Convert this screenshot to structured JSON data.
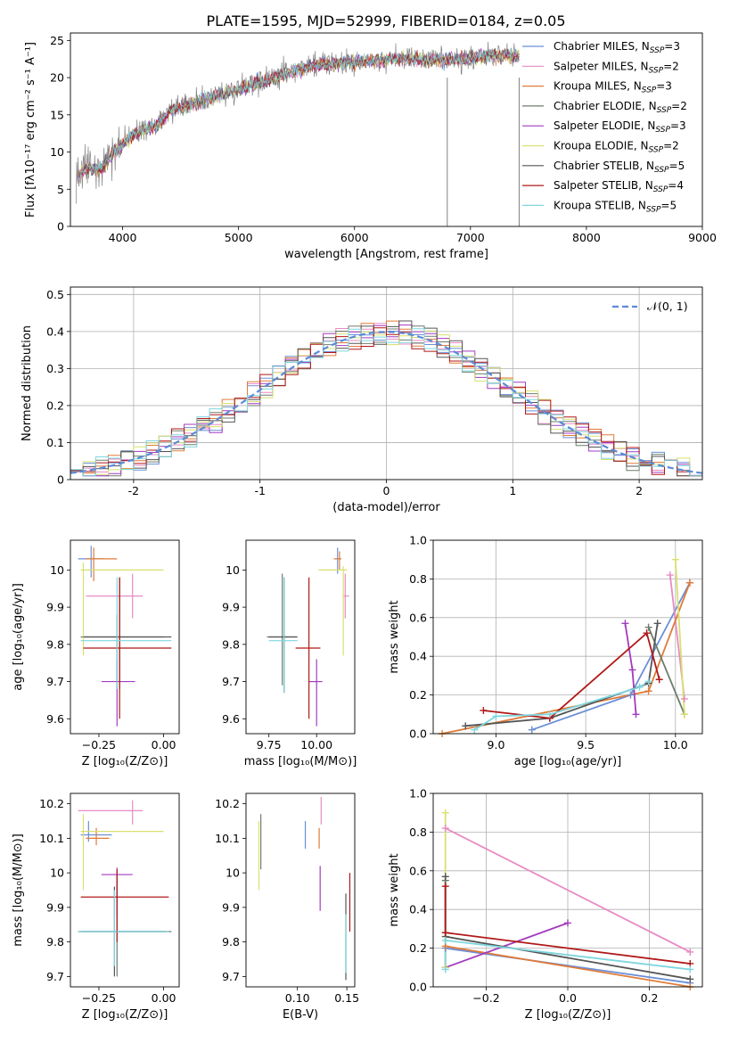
{
  "figure": {
    "title": "PLATE=1595, MJD=52999, FIBERID=0184, z=0.05"
  },
  "models": [
    {
      "name": "Chabrier MILES",
      "nssp": "3",
      "color": "#6a8fd8"
    },
    {
      "name": "Salpeter MILES",
      "nssp": "2",
      "color": "#e88bc4"
    },
    {
      "name": "Kroupa MILES",
      "nssp": "3",
      "color": "#e07b39"
    },
    {
      "name": "Chabrier ELODIE",
      "nssp": "2",
      "color": "#6d7d6d"
    },
    {
      "name": "Salpeter ELODIE",
      "nssp": "3",
      "color": "#a33bbf"
    },
    {
      "name": "Kroupa ELODIE",
      "nssp": "2",
      "color": "#d8e070"
    },
    {
      "name": "Chabrier STELIB",
      "nssp": "5",
      "color": "#555555"
    },
    {
      "name": "Salpeter STELIB",
      "nssp": "4",
      "color": "#b01818"
    },
    {
      "name": "Kroupa STELIB",
      "nssp": "5",
      "color": "#7ed6de"
    }
  ],
  "chart_data": [
    {
      "id": "spectrum",
      "type": "line",
      "xlabel": "wavelength [Angstrom, rest frame]",
      "ylabel": "Flux [fλ10⁻¹⁷ erg cm⁻² s⁻¹ A⁻¹]",
      "xlim": [
        3550,
        9000
      ],
      "ylim": [
        0,
        26
      ],
      "xticks": [
        4000,
        5000,
        6000,
        7000,
        8000,
        9000
      ],
      "yticks": [
        0,
        5,
        10,
        15,
        20,
        25
      ],
      "grid": false,
      "legend": "top-right",
      "observed_color": "#808080",
      "data_cut_x": [
        6800,
        7420
      ],
      "continuum": {
        "x": [
          3600,
          3700,
          3800,
          3900,
          4000,
          4100,
          4200,
          4300,
          4400,
          4500,
          4700,
          4900,
          5100,
          5300,
          5500,
          5700,
          5900,
          6100,
          6300,
          6500,
          6700,
          6900,
          7100,
          7300,
          7420
        ],
        "y": [
          6.5,
          8,
          7.5,
          9.5,
          11,
          12.5,
          13,
          13.5,
          15.5,
          16,
          17,
          18,
          19,
          20,
          21,
          21.8,
          22,
          22.2,
          22.5,
          22.5,
          22.3,
          22.5,
          22.8,
          23,
          23
        ]
      }
    },
    {
      "id": "residuals",
      "type": "histogram",
      "xlabel": "(data-model)/error",
      "ylabel": "Normed distribution",
      "xlim": [
        -2.5,
        2.5
      ],
      "ylim": [
        0,
        0.52
      ],
      "xticks": [
        -2,
        -1,
        0,
        1,
        2
      ],
      "yticks": [
        0.0,
        0.1,
        0.2,
        0.3,
        0.4,
        0.5
      ],
      "grid": true,
      "legend": "top-right",
      "reference_label": "𝒩(0, 1)",
      "reference_color": "#5b8ad6",
      "bin_width": 0.1
    },
    {
      "id": "age-vs-Z",
      "type": "errorbar",
      "xlabel": "Z [log₁₀(Z/Z⊙)]",
      "ylabel": "age  [log₁₀(age/yr)]",
      "xlim": [
        -0.36,
        0.06
      ],
      "ylim": [
        9.56,
        10.08
      ],
      "xticks": [
        -0.25,
        0.0
      ],
      "xtick_labels": [
        "−0.25",
        "0.00"
      ],
      "yticks": [
        9.6,
        9.7,
        9.8,
        9.9,
        10.0
      ],
      "series": [
        {
          "x": -0.28,
          "y": 10.03,
          "xerr": [
            0.05,
            0.05
          ],
          "yerr": [
            0.05,
            0.035
          ]
        },
        {
          "x": -0.12,
          "y": 9.93,
          "xerr": [
            0.18,
            0.04
          ],
          "yerr": [
            0.06,
            0.06
          ]
        },
        {
          "x": -0.27,
          "y": 10.03,
          "xerr": [
            0.03,
            0.09
          ],
          "yerr": [
            0.06,
            0.03
          ]
        },
        {
          "x": -0.18,
          "y": 9.82,
          "xerr": [
            0.14,
            0.18
          ],
          "yerr": [
            0.14,
            0.06
          ]
        },
        {
          "x": -0.18,
          "y": 9.7,
          "xerr": [
            0.06,
            0.07
          ],
          "yerr": [
            0.12,
            0.06
          ]
        },
        {
          "x": -0.31,
          "y": 10.0,
          "xerr": [
            0.01,
            0.31
          ],
          "yerr": [
            0.23,
            0.02
          ]
        },
        {
          "x": -0.17,
          "y": 9.82,
          "xerr": [
            0.14,
            0.2
          ],
          "yerr": [
            0.14,
            0.16
          ]
        },
        {
          "x": -0.17,
          "y": 9.79,
          "xerr": [
            0.14,
            0.2
          ],
          "yerr": [
            0.19,
            0.19
          ]
        },
        {
          "x": -0.18,
          "y": 9.81,
          "xerr": [
            0.14,
            0.21
          ],
          "yerr": [
            0.13,
            0.17
          ]
        }
      ]
    },
    {
      "id": "age-vs-mass",
      "type": "errorbar",
      "xlabel": "mass [log₁₀(M/M⊙)]",
      "ylabel": "",
      "xlim": [
        9.63,
        10.2
      ],
      "ylim": [
        9.56,
        10.08
      ],
      "xticks": [
        9.75,
        10.0
      ],
      "xtick_labels": [
        "9.75",
        "10.00"
      ],
      "yticks": [
        9.6,
        9.7,
        9.8,
        9.9,
        10.0
      ],
      "series": [
        {
          "x": 10.11,
          "y": 10.03,
          "xerr": [
            0.01,
            0.02
          ],
          "yerr": [
            0.04,
            0.03
          ]
        },
        {
          "x": 10.15,
          "y": 9.93,
          "xerr": [
            0.01,
            0.02
          ],
          "yerr": [
            0.06,
            0.06
          ]
        },
        {
          "x": 10.12,
          "y": 10.03,
          "xerr": [
            0.03,
            0.01
          ],
          "yerr": [
            0.03,
            0.02
          ]
        },
        {
          "x": 9.82,
          "y": 9.82,
          "xerr": [
            0.08,
            0.07
          ],
          "yerr": [
            0.13,
            0.17
          ]
        },
        {
          "x": 10.0,
          "y": 9.7,
          "xerr": [
            0.04,
            0.03
          ],
          "yerr": [
            0.12,
            0.06
          ]
        },
        {
          "x": 10.14,
          "y": 10.0,
          "xerr": [
            0.13,
            0.02
          ],
          "yerr": [
            0.23,
            0.01
          ]
        },
        {
          "x": 9.83,
          "y": 9.82,
          "xerr": [
            0.08,
            0.07
          ],
          "yerr": [
            0.15,
            0.16
          ]
        },
        {
          "x": 9.96,
          "y": 9.79,
          "xerr": [
            0.07,
            0.06
          ],
          "yerr": [
            0.19,
            0.19
          ]
        },
        {
          "x": 9.83,
          "y": 9.81,
          "xerr": [
            0.08,
            0.07
          ],
          "yerr": [
            0.14,
            0.17
          ]
        }
      ]
    },
    {
      "id": "weight-vs-age",
      "type": "line",
      "xlabel": "age  [log₁₀(age/yr)]",
      "ylabel": "mass weight",
      "xlim": [
        8.65,
        10.15
      ],
      "ylim": [
        0,
        1.0
      ],
      "xticks": [
        9.0,
        9.5,
        10.0
      ],
      "xtick_labels": [
        "9.0",
        "9.5",
        "10.0"
      ],
      "yticks": [
        0.0,
        0.2,
        0.4,
        0.6,
        0.8,
        1.0
      ],
      "ytick_labels": [
        "0.0",
        "0.2",
        "0.4",
        "0.6",
        "0.8",
        "1.0"
      ],
      "grid": true,
      "series": [
        {
          "x": [
            9.2,
            9.75,
            10.08
          ],
          "y": [
            0.02,
            0.2,
            0.78
          ]
        },
        {
          "x": [
            10.05,
            9.97
          ],
          "y": [
            0.18,
            0.82
          ]
        },
        {
          "x": [
            8.7,
            9.85,
            10.08
          ],
          "y": [
            0.0,
            0.22,
            0.78
          ]
        },
        {
          "x": [
            9.85,
            10.05
          ],
          "y": [
            0.55,
            0.1
          ]
        },
        {
          "x": [
            9.78,
            9.76,
            9.72
          ],
          "y": [
            0.1,
            0.33,
            0.57
          ]
        },
        {
          "x": [
            10.05,
            10.0
          ],
          "y": [
            0.1,
            0.9
          ]
        },
        {
          "x": [
            8.83,
            9.3,
            9.85,
            9.9
          ],
          "y": [
            0.04,
            0.08,
            0.26,
            0.57
          ]
        },
        {
          "x": [
            8.93,
            9.3,
            9.84,
            9.91
          ],
          "y": [
            0.12,
            0.08,
            0.52,
            0.28
          ]
        },
        {
          "x": [
            8.88,
            9.0,
            9.3,
            9.8,
            9.85
          ],
          "y": [
            0.02,
            0.09,
            0.1,
            0.24,
            0.27
          ]
        }
      ]
    },
    {
      "id": "mass-vs-Z",
      "type": "errorbar",
      "xlabel": "Z [log₁₀(Z/Z⊙)]",
      "ylabel": "mass [log₁₀(M/M⊙)]",
      "xlim": [
        -0.36,
        0.06
      ],
      "ylim": [
        9.67,
        10.23
      ],
      "xticks": [
        -0.25,
        0.0
      ],
      "xtick_labels": [
        "−0.25",
        "0.00"
      ],
      "yticks": [
        9.7,
        9.8,
        9.9,
        10.0,
        10.1,
        10.2
      ],
      "series": [
        {
          "x": -0.29,
          "y": 10.11,
          "xerr": [
            0.03,
            0.09
          ],
          "yerr": [
            0.02,
            0.04
          ]
        },
        {
          "x": -0.12,
          "y": 10.18,
          "xerr": [
            0.21,
            0.04
          ],
          "yerr": [
            0.04,
            0.03
          ]
        },
        {
          "x": -0.26,
          "y": 10.1,
          "xerr": [
            0.04,
            0.05
          ],
          "yerr": [
            0.02,
            0.03
          ]
        },
        {
          "x": -0.18,
          "y": 9.83,
          "xerr": [
            0.14,
            0.21
          ],
          "yerr": [
            0.13,
            0.17
          ]
        },
        {
          "x": -0.18,
          "y": 9.995,
          "xerr": [
            0.06,
            0.06
          ],
          "yerr": [
            0.12,
            0.02
          ]
        },
        {
          "x": -0.31,
          "y": 10.12,
          "xerr": [
            0.01,
            0.31
          ],
          "yerr": [
            0.17,
            0.05
          ]
        },
        {
          "x": -0.19,
          "y": 9.83,
          "xerr": [
            0.14,
            0.2
          ],
          "yerr": [
            0.13,
            0.13
          ]
        },
        {
          "x": -0.18,
          "y": 9.93,
          "xerr": [
            0.14,
            0.2
          ],
          "yerr": [
            0.13,
            0.08
          ]
        },
        {
          "x": -0.19,
          "y": 9.83,
          "xerr": [
            0.14,
            0.21
          ],
          "yerr": [
            0.1,
            0.12
          ]
        }
      ]
    },
    {
      "id": "mass-vs-EBV",
      "type": "errorbar",
      "xlabel": "E(B-V)",
      "ylabel": "",
      "xlim": [
        0.048,
        0.158
      ],
      "ylim": [
        9.67,
        10.23
      ],
      "xticks": [
        0.1,
        0.15
      ],
      "xtick_labels": [
        "0.10",
        "0.15"
      ],
      "yticks": [
        9.7,
        9.8,
        9.9,
        10.0,
        10.1,
        10.2
      ],
      "series": [
        {
          "x": 0.108,
          "y": 10.11,
          "xerr": [
            0,
            0
          ],
          "yerr": [
            0.04,
            0.04
          ]
        },
        {
          "x": 0.124,
          "y": 10.18,
          "xerr": [
            0,
            0
          ],
          "yerr": [
            0.04,
            0.04
          ]
        },
        {
          "x": 0.122,
          "y": 10.1,
          "xerr": [
            0,
            0
          ],
          "yerr": [
            0.03,
            0.03
          ]
        },
        {
          "x": 0.063,
          "y": 10.09,
          "xerr": [
            0,
            0
          ],
          "yerr": [
            0.08,
            0.08
          ]
        },
        {
          "x": 0.123,
          "y": 9.96,
          "xerr": [
            0,
            0
          ],
          "yerr": [
            0.07,
            0.06
          ]
        },
        {
          "x": 0.061,
          "y": 10.05,
          "xerr": [
            0,
            0
          ],
          "yerr": [
            0.1,
            0.1
          ]
        },
        {
          "x": 0.149,
          "y": 9.86,
          "xerr": [
            0,
            0
          ],
          "yerr": [
            0.17,
            0.08
          ]
        },
        {
          "x": 0.153,
          "y": 9.92,
          "xerr": [
            0,
            0
          ],
          "yerr": [
            0.09,
            0.08
          ]
        },
        {
          "x": 0.149,
          "y": 9.8,
          "xerr": [
            0,
            0
          ],
          "yerr": [
            0.09,
            0.08
          ]
        }
      ]
    },
    {
      "id": "weight-vs-Z",
      "type": "line",
      "xlabel": "Z [log₁₀(Z/Z⊙)]",
      "ylabel": "mass weight",
      "xlim": [
        -0.33,
        0.33
      ],
      "ylim": [
        0,
        1.0
      ],
      "xticks": [
        -0.2,
        0.0,
        0.2
      ],
      "xtick_labels": [
        "−0.2",
        "0.0",
        "0.2"
      ],
      "yticks": [
        0.0,
        0.2,
        0.4,
        0.6,
        0.8,
        1.0
      ],
      "ytick_labels": [
        "0.0",
        "0.2",
        "0.4",
        "0.6",
        "0.8",
        "1.0"
      ],
      "grid": true,
      "series": [
        {
          "x": [
            -0.3,
            0.3
          ],
          "y": [
            0.2,
            0.02
          ]
        },
        {
          "x": [
            -0.3,
            0.3
          ],
          "y": [
            0.82,
            0.18
          ]
        },
        {
          "x": [
            -0.3,
            0.3
          ],
          "y": [
            0.21,
            0.0
          ]
        },
        {
          "x": [
            -0.3,
            -0.3
          ],
          "y": [
            0.55,
            0.1
          ]
        },
        {
          "x": [
            -0.3,
            0.0
          ],
          "y": [
            0.1,
            0.33
          ]
        },
        {
          "x": [
            -0.3,
            -0.3
          ],
          "y": [
            0.1,
            0.9
          ]
        },
        {
          "x": [
            -0.3,
            -0.3,
            0.3
          ],
          "y": [
            0.57,
            0.26,
            0.04
          ]
        },
        {
          "x": [
            -0.3,
            -0.3,
            0.3
          ],
          "y": [
            0.52,
            0.28,
            0.12
          ]
        },
        {
          "x": [
            -0.3,
            -0.3,
            0.3
          ],
          "y": [
            0.09,
            0.24,
            0.09
          ]
        }
      ]
    }
  ]
}
